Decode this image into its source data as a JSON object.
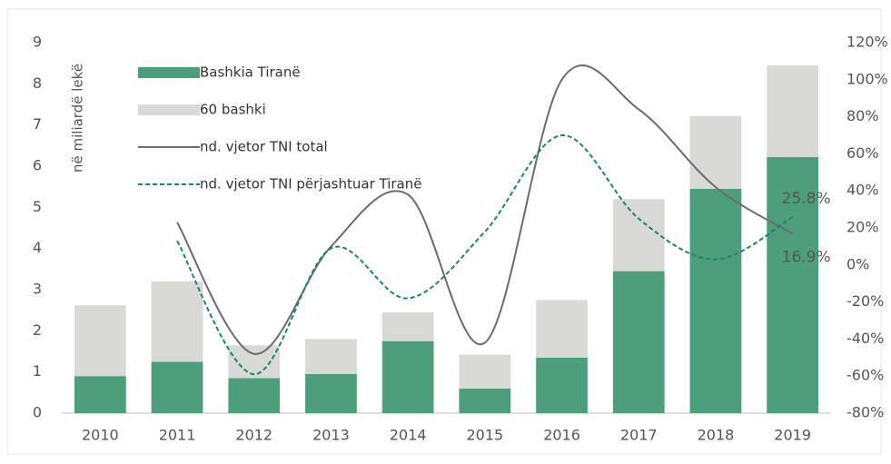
{
  "chart_data": {
    "type": "bar",
    "y_axis_label": "në miliardë lekë",
    "categories": [
      "2010",
      "2011",
      "2012",
      "2013",
      "2014",
      "2015",
      "2016",
      "2017",
      "2018",
      "2019"
    ],
    "series": [
      {
        "name": "Bashkia Tiranë",
        "color": "#4c9f7a",
        "values": [
          0.9,
          1.25,
          0.85,
          0.95,
          1.75,
          0.6,
          1.35,
          3.45,
          5.45,
          6.22
        ]
      },
      {
        "name": "60 bashki",
        "color": "#d9d9d6",
        "values": [
          1.72,
          1.95,
          0.8,
          0.85,
          0.7,
          0.82,
          1.4,
          1.75,
          1.77,
          2.23
        ]
      },
      {
        "name": "nd. vjetor TNI total",
        "color": "#6b6b6b",
        "type": "line",
        "axis": "y2",
        "dash": false,
        "values": [
          null,
          23,
          -48,
          10,
          38,
          -42,
          100,
          84,
          42,
          16.9
        ],
        "value_labels": [
          null,
          null,
          null,
          null,
          null,
          null,
          null,
          null,
          null,
          "16.9%"
        ]
      },
      {
        "name": "nd. vjetor TNI përjashtuar Tiranë",
        "color": "#1b7f7a",
        "type": "line",
        "axis": "y2",
        "dash": true,
        "values": [
          null,
          13,
          -59,
          9,
          -18,
          18,
          70,
          25,
          3,
          25.8
        ],
        "value_labels": [
          null,
          null,
          null,
          null,
          null,
          null,
          null,
          null,
          null,
          "25.8%"
        ]
      }
    ],
    "ylim": [
      0,
      9
    ],
    "yticks": [
      0,
      1,
      2,
      3,
      4,
      5,
      6,
      7,
      8,
      9
    ],
    "y2lim": [
      -80,
      120
    ],
    "y2ticks": [
      {
        "value": -80,
        "label": "-80%"
      },
      {
        "value": -60,
        "label": "-60%"
      },
      {
        "value": -40,
        "label": "-40%"
      },
      {
        "value": -20,
        "label": "-20%"
      },
      {
        "value": 0,
        "label": "0%"
      },
      {
        "value": 20,
        "label": "20%"
      },
      {
        "value": 40,
        "label": "40%"
      },
      {
        "value": 60,
        "label": "60%"
      },
      {
        "value": 80,
        "label": "80%"
      },
      {
        "value": 100,
        "label": "100%"
      },
      {
        "value": 120,
        "label": "120%"
      }
    ],
    "grid": false,
    "legend": "upper left"
  }
}
